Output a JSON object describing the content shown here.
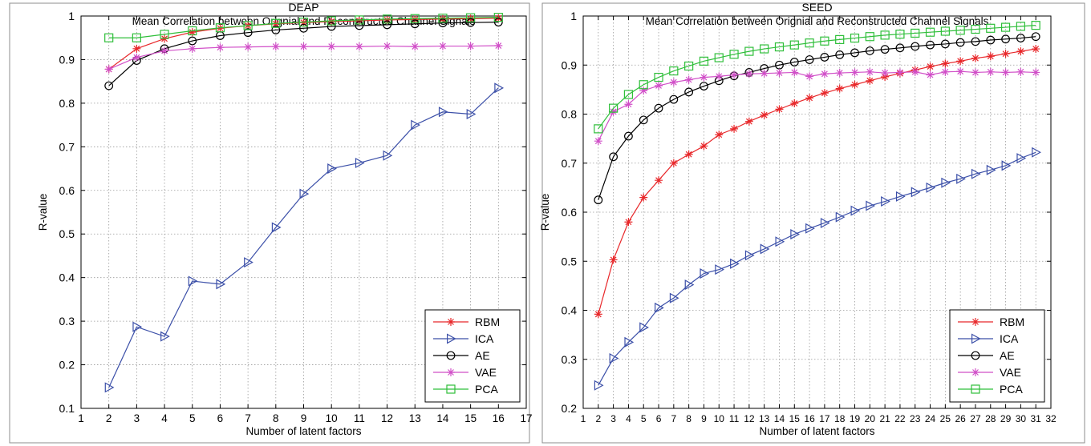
{
  "chart_data": [
    {
      "type": "line",
      "title": "DEAP",
      "subtitle": "Mean Correlation between Orignial and Reconstructed Channel Signals",
      "xlabel": "Number of latent factors",
      "ylabel": "R-value",
      "xlim": [
        1,
        17
      ],
      "ylim": [
        0.1,
        1
      ],
      "xticks": [
        1,
        2,
        3,
        4,
        5,
        6,
        7,
        8,
        9,
        10,
        11,
        12,
        13,
        14,
        15,
        16,
        17
      ],
      "yticks": [
        0.1,
        0.2,
        0.3,
        0.4,
        0.5,
        0.6,
        0.7,
        0.8,
        0.9,
        1
      ],
      "ytick_labels": [
        "0.1",
        "0.2",
        "0.3",
        "0.4",
        "0.5",
        "0.6",
        "0.7",
        "0.8",
        "0.9",
        "1"
      ],
      "grid": true,
      "legend_position": "bottom-right",
      "x": [
        2,
        3,
        4,
        5,
        6,
        7,
        8,
        9,
        10,
        11,
        12,
        13,
        14,
        15,
        16
      ],
      "series": [
        {
          "name": "RBM",
          "color": "#e8272a",
          "marker": "star",
          "values": [
            0.878,
            0.925,
            0.948,
            0.963,
            0.972,
            0.978,
            0.982,
            0.985,
            0.987,
            0.989,
            0.991,
            0.992,
            0.993,
            0.994,
            0.995
          ]
        },
        {
          "name": "ICA",
          "color": "#3b4fa8",
          "marker": "triangle-right",
          "values": [
            0.148,
            0.287,
            0.265,
            0.392,
            0.385,
            0.435,
            0.515,
            0.592,
            0.65,
            0.663,
            0.68,
            0.75,
            0.78,
            0.775,
            0.835
          ]
        },
        {
          "name": "AE",
          "color": "#000000",
          "marker": "circle",
          "values": [
            0.84,
            0.898,
            0.925,
            0.943,
            0.955,
            0.962,
            0.968,
            0.972,
            0.976,
            0.978,
            0.98,
            0.982,
            0.984,
            0.985,
            0.986
          ]
        },
        {
          "name": "VAE",
          "color": "#d14fc8",
          "marker": "star",
          "values": [
            0.878,
            0.905,
            0.92,
            0.925,
            0.928,
            0.929,
            0.93,
            0.93,
            0.93,
            0.93,
            0.931,
            0.93,
            0.931,
            0.931,
            0.932
          ]
        },
        {
          "name": "PCA",
          "color": "#2fbf3a",
          "marker": "square",
          "values": [
            0.95,
            0.95,
            0.958,
            0.966,
            0.973,
            0.978,
            0.983,
            0.986,
            0.989,
            0.991,
            0.993,
            0.994,
            0.995,
            0.996,
            0.997
          ]
        }
      ]
    },
    {
      "type": "line",
      "title": "SEED",
      "subtitle": "Mean Correlation between Orignial and Reconstructed Channel Signals",
      "xlabel": "Number of latent factors",
      "ylabel": "R-value",
      "xlim": [
        1,
        32
      ],
      "ylim": [
        0.2,
        1
      ],
      "xticks": [
        1,
        2,
        3,
        4,
        5,
        6,
        7,
        8,
        9,
        10,
        11,
        12,
        13,
        14,
        15,
        16,
        17,
        18,
        19,
        20,
        21,
        22,
        23,
        24,
        25,
        26,
        27,
        28,
        29,
        30,
        31,
        32
      ],
      "yticks": [
        0.2,
        0.3,
        0.4,
        0.5,
        0.6,
        0.7,
        0.8,
        0.9,
        1
      ],
      "ytick_labels": [
        "0.2",
        "0.3",
        "0.4",
        "0.5",
        "0.6",
        "0.7",
        "0.8",
        "0.9",
        "1"
      ],
      "grid": true,
      "legend_position": "bottom-right",
      "x": [
        2,
        3,
        4,
        5,
        6,
        7,
        8,
        9,
        10,
        11,
        12,
        13,
        14,
        15,
        16,
        17,
        18,
        19,
        20,
        21,
        22,
        23,
        24,
        25,
        26,
        27,
        28,
        29,
        30,
        31
      ],
      "series": [
        {
          "name": "RBM",
          "color": "#e8272a",
          "marker": "star",
          "values": [
            0.392,
            0.503,
            0.58,
            0.63,
            0.665,
            0.7,
            0.718,
            0.735,
            0.758,
            0.77,
            0.785,
            0.798,
            0.81,
            0.822,
            0.833,
            0.843,
            0.852,
            0.86,
            0.868,
            0.876,
            0.883,
            0.89,
            0.897,
            0.903,
            0.908,
            0.914,
            0.918,
            0.923,
            0.928,
            0.933
          ]
        },
        {
          "name": "ICA",
          "color": "#3b4fa8",
          "marker": "triangle-right",
          "values": [
            0.247,
            0.302,
            0.335,
            0.365,
            0.405,
            0.425,
            0.452,
            0.475,
            0.483,
            0.495,
            0.512,
            0.525,
            0.54,
            0.555,
            0.567,
            0.578,
            0.59,
            0.603,
            0.613,
            0.622,
            0.632,
            0.641,
            0.65,
            0.66,
            0.668,
            0.678,
            0.686,
            0.695,
            0.71,
            0.722
          ]
        },
        {
          "name": "AE",
          "color": "#000000",
          "marker": "circle",
          "values": [
            0.625,
            0.713,
            0.755,
            0.788,
            0.812,
            0.83,
            0.845,
            0.857,
            0.868,
            0.878,
            0.885,
            0.893,
            0.9,
            0.906,
            0.911,
            0.916,
            0.921,
            0.925,
            0.929,
            0.932,
            0.935,
            0.938,
            0.941,
            0.943,
            0.946,
            0.948,
            0.951,
            0.953,
            0.955,
            0.958
          ]
        },
        {
          "name": "VAE",
          "color": "#d14fc8",
          "marker": "star",
          "values": [
            0.745,
            0.805,
            0.82,
            0.848,
            0.858,
            0.865,
            0.87,
            0.875,
            0.877,
            0.88,
            0.882,
            0.883,
            0.884,
            0.885,
            0.877,
            0.882,
            0.884,
            0.885,
            0.886,
            0.884,
            0.885,
            0.886,
            0.88,
            0.886,
            0.887,
            0.885,
            0.886,
            0.885,
            0.886,
            0.885
          ]
        },
        {
          "name": "PCA",
          "color": "#2fbf3a",
          "marker": "square",
          "values": [
            0.77,
            0.812,
            0.84,
            0.86,
            0.875,
            0.888,
            0.898,
            0.908,
            0.915,
            0.922,
            0.928,
            0.933,
            0.937,
            0.941,
            0.945,
            0.949,
            0.952,
            0.955,
            0.958,
            0.961,
            0.963,
            0.965,
            0.967,
            0.969,
            0.971,
            0.973,
            0.975,
            0.977,
            0.979,
            0.981
          ]
        }
      ]
    }
  ]
}
